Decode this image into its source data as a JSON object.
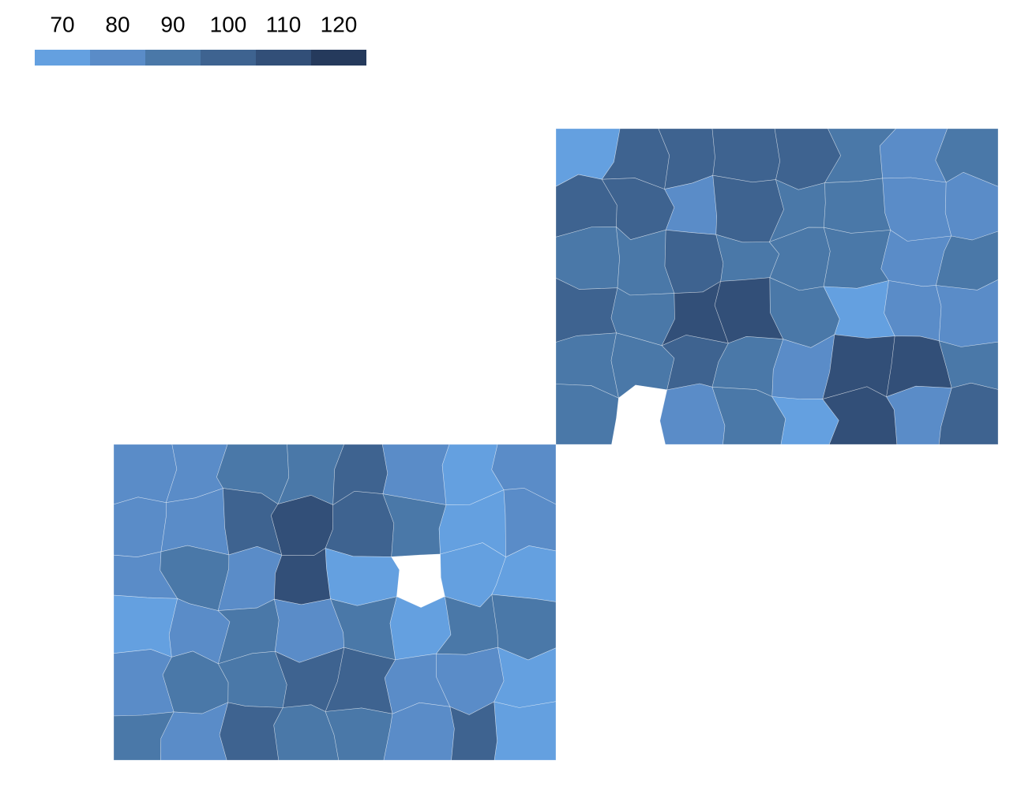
{
  "chart_data": {
    "type": "choropleth",
    "legend_ticks": [
      70,
      80,
      90,
      100,
      110,
      120
    ],
    "colors": [
      "#64a0e0",
      "#5a8cc8",
      "#4a78a8",
      "#3e6390",
      "#324f78",
      "#253a5c"
    ],
    "panels": [
      {
        "values": [
          [
            72,
            105,
            105,
            108,
            108,
            95,
            80,
            95
          ],
          [
            108,
            105,
            80,
            105,
            95,
            90,
            82,
            88
          ],
          [
            92,
            98,
            105,
            95,
            92,
            98,
            85,
            92
          ],
          [
            108,
            98,
            118,
            110,
            95,
            78,
            88,
            80
          ],
          [
            90,
            92,
            105,
            90,
            82,
            110,
            112,
            92
          ],
          [
            98,
            null,
            88,
            90,
            75,
            112,
            88,
            100
          ]
        ]
      },
      {
        "values": [
          [
            85,
            85,
            98,
            98,
            108,
            80,
            78,
            80
          ],
          [
            88,
            85,
            102,
            112,
            100,
            95,
            72,
            85
          ],
          [
            85,
            92,
            88,
            112,
            75,
            null,
            72,
            72
          ],
          [
            72,
            88,
            92,
            85,
            92,
            72,
            98,
            92
          ],
          [
            88,
            95,
            90,
            105,
            108,
            80,
            85,
            75
          ],
          [
            95,
            88,
            108,
            92,
            95,
            82,
            105,
            75
          ]
        ]
      }
    ]
  }
}
